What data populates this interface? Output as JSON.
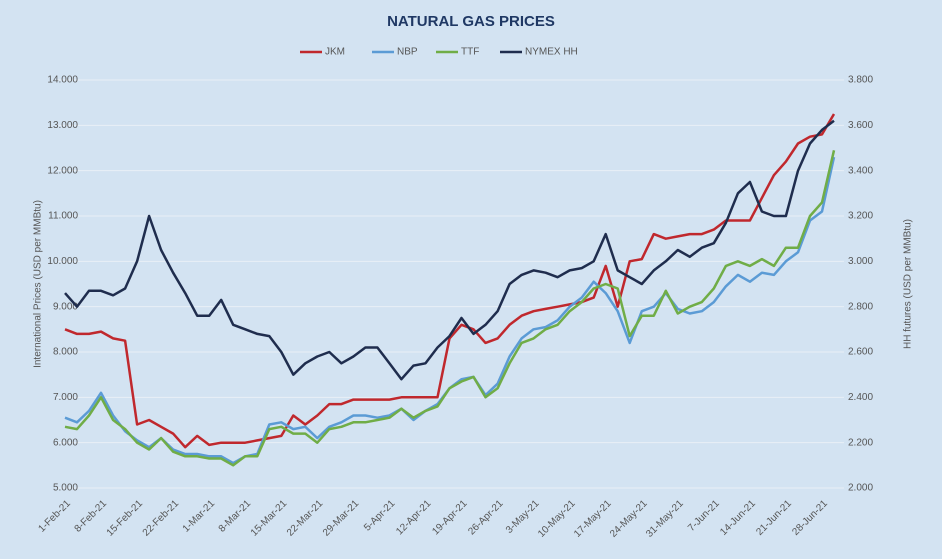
{
  "chart_data": {
    "type": "line",
    "title": "NATURAL GAS PRICES",
    "ylabel": "International Prices (USD per MMBtu)",
    "y2label": "HH futures (USD per MMBtu)",
    "legend": "top",
    "grid": true,
    "ylim": [
      5,
      14
    ],
    "yticks": [
      {
        "value": 5,
        "label": "5.000"
      },
      {
        "value": 6,
        "label": "6.000"
      },
      {
        "value": 7,
        "label": "7.000"
      },
      {
        "value": 8,
        "label": "8.000"
      },
      {
        "value": 9,
        "label": "9.000"
      },
      {
        "value": 10,
        "label": "10.000"
      },
      {
        "value": 11,
        "label": "11.000"
      },
      {
        "value": 12,
        "label": "12.000"
      },
      {
        "value": 13,
        "label": "13.000"
      },
      {
        "value": 14,
        "label": "14.000"
      }
    ],
    "y2lim": [
      2,
      3.8
    ],
    "y2ticks": [
      {
        "value": 2,
        "label": "2.000"
      },
      {
        "value": 2.2,
        "label": "2.200"
      },
      {
        "value": 2.4,
        "label": "2.400"
      },
      {
        "value": 2.6,
        "label": "2.600"
      },
      {
        "value": 2.8,
        "label": "2.800"
      },
      {
        "value": 3,
        "label": "3.000"
      },
      {
        "value": 3.2,
        "label": "3.200"
      },
      {
        "value": 3.4,
        "label": "3.400"
      },
      {
        "value": 3.6,
        "label": "3.600"
      },
      {
        "value": 3.8,
        "label": "3.800"
      }
    ],
    "categories": [
      "1-Feb-21",
      null,
      null,
      "8-Feb-21",
      null,
      null,
      "15-Feb-21",
      null,
      null,
      "22-Feb-21",
      null,
      null,
      "1-Mar-21",
      null,
      null,
      "8-Mar-21",
      null,
      null,
      "15-Mar-21",
      null,
      null,
      "22-Mar-21",
      null,
      null,
      "29-Mar-21",
      null,
      null,
      "5-Apr-21",
      null,
      null,
      "12-Apr-21",
      null,
      null,
      "19-Apr-21",
      null,
      null,
      "26-Apr-21",
      null,
      null,
      "3-May-21",
      null,
      null,
      "10-May-21",
      null,
      null,
      "17-May-21",
      null,
      null,
      "24-May-21",
      null,
      null,
      "31-May-21",
      null,
      null,
      "7-Jun-21",
      null,
      null,
      "14-Jun-21",
      null,
      null,
      "21-Jun-21",
      null,
      null,
      "28-Jun-21",
      null
    ],
    "series": [
      {
        "name": "JKM",
        "color": "#c0282d",
        "values": [
          8.5,
          8.4,
          8.4,
          8.45,
          8.3,
          8.25,
          6.4,
          6.5,
          6.35,
          6.2,
          5.9,
          6.15,
          5.95,
          6.0,
          6.0,
          6.0,
          6.05,
          6.1,
          6.15,
          6.6,
          6.4,
          6.6,
          6.85,
          6.85,
          6.95,
          6.95,
          6.95,
          6.95,
          7.0,
          7.0,
          7.0,
          7.0,
          8.3,
          8.6,
          8.5,
          8.2,
          8.3,
          8.6,
          8.8,
          8.9,
          8.95,
          9.0,
          9.05,
          9.1,
          9.2,
          9.9,
          9.0,
          10.0,
          10.05,
          10.6,
          10.5,
          10.55,
          10.6,
          10.6,
          10.7,
          10.9,
          10.9,
          10.9,
          11.4,
          11.9,
          12.2,
          12.6,
          12.75,
          12.8,
          13.25
        ]
      },
      {
        "name": "NBP",
        "color": "#5b9bd5",
        "values": [
          6.55,
          6.45,
          6.7,
          7.1,
          6.6,
          6.25,
          6.05,
          5.9,
          6.1,
          5.85,
          5.75,
          5.75,
          5.7,
          5.7,
          5.55,
          5.7,
          5.75,
          6.4,
          6.45,
          6.3,
          6.35,
          6.1,
          6.35,
          6.45,
          6.6,
          6.6,
          6.55,
          6.6,
          6.75,
          6.5,
          6.7,
          6.85,
          7.2,
          7.4,
          7.45,
          7.05,
          7.3,
          7.9,
          8.3,
          8.5,
          8.55,
          8.7,
          9.0,
          9.2,
          9.55,
          9.3,
          8.9,
          8.2,
          8.9,
          9.0,
          9.3,
          8.95,
          8.85,
          8.9,
          9.1,
          9.45,
          9.7,
          9.55,
          9.75,
          9.7,
          10.0,
          10.2,
          10.9,
          11.1,
          12.3
        ]
      },
      {
        "name": "TTF",
        "color": "#70ad47",
        "values": [
          6.35,
          6.3,
          6.6,
          7.0,
          6.5,
          6.3,
          6.0,
          5.85,
          6.1,
          5.8,
          5.7,
          5.7,
          5.65,
          5.65,
          5.5,
          5.7,
          5.7,
          6.3,
          6.35,
          6.2,
          6.2,
          6.0,
          6.3,
          6.35,
          6.45,
          6.45,
          6.5,
          6.55,
          6.75,
          6.55,
          6.7,
          6.8,
          7.2,
          7.35,
          7.45,
          7.0,
          7.2,
          7.75,
          8.2,
          8.3,
          8.5,
          8.6,
          8.9,
          9.1,
          9.4,
          9.5,
          9.4,
          8.35,
          8.8,
          8.8,
          9.35,
          8.85,
          9.0,
          9.1,
          9.4,
          9.9,
          10.0,
          9.9,
          10.05,
          9.9,
          10.3,
          10.3,
          11.0,
          11.3,
          12.45
        ]
      },
      {
        "name": "NYMEX HH",
        "color": "#1f2d4e",
        "axis": "y2",
        "values": [
          2.86,
          2.8,
          2.87,
          2.87,
          2.85,
          2.88,
          3.0,
          3.2,
          3.05,
          2.95,
          2.86,
          2.76,
          2.76,
          2.83,
          2.72,
          2.7,
          2.68,
          2.67,
          2.6,
          2.5,
          2.55,
          2.58,
          2.6,
          2.55,
          2.58,
          2.62,
          2.62,
          2.55,
          2.48,
          2.54,
          2.55,
          2.62,
          2.67,
          2.75,
          2.68,
          2.72,
          2.78,
          2.9,
          2.94,
          2.96,
          2.95,
          2.93,
          2.96,
          2.97,
          3.0,
          3.12,
          2.96,
          2.93,
          2.9,
          2.96,
          3.0,
          3.05,
          3.02,
          3.06,
          3.08,
          3.17,
          3.3,
          3.35,
          3.22,
          3.2,
          3.2,
          3.4,
          3.52,
          3.58,
          3.62
        ]
      }
    ]
  }
}
